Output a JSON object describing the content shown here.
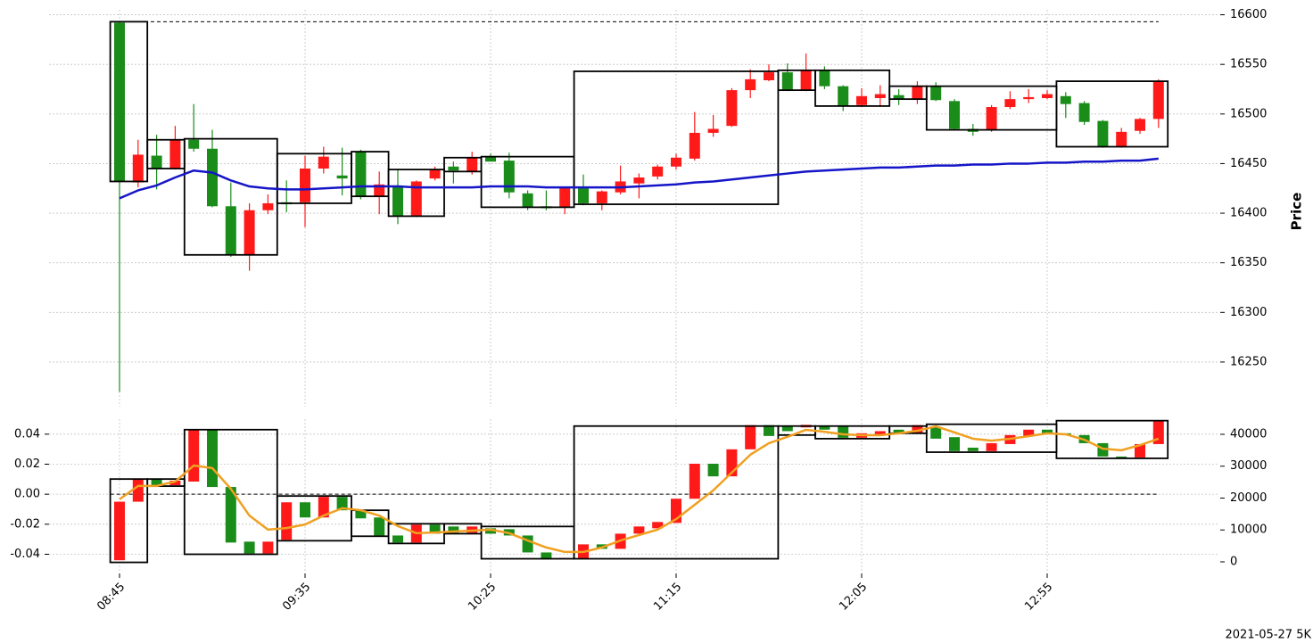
{
  "chart_data": [
    {
      "type": "candlestick",
      "ylabel": "Price",
      "ylim": [
        16205,
        16605
      ],
      "yticks": [
        16250,
        16300,
        16350,
        16400,
        16450,
        16500,
        16550,
        16600
      ],
      "grid": true,
      "up_color": "#ff1a1a",
      "down_color": "#1a8c1a",
      "hline": 16593,
      "open": [
        16592,
        16431,
        16458,
        16445,
        16474,
        16465,
        16407,
        16358,
        16403,
        16411,
        16411,
        16445,
        16438,
        16462,
        16417,
        16428,
        16397,
        16435,
        16447,
        16442,
        16457,
        16453,
        16420,
        16407,
        16406,
        16427,
        16410,
        16421,
        16430,
        16437,
        16447,
        16455,
        16481,
        16488,
        16524,
        16534,
        16542,
        16524,
        16544,
        16528,
        16509,
        16516,
        16519,
        16515,
        16528,
        16513,
        16485,
        16484,
        16507,
        16515,
        16516,
        16518,
        16511,
        16493,
        16467,
        16483,
        16495
      ],
      "high": [
        16593,
        16474,
        16479,
        16488,
        16510,
        16484,
        16431,
        16410,
        16419,
        16433,
        16458,
        16467,
        16466,
        16464,
        16442,
        16444,
        16433,
        16447,
        16452,
        16462,
        16460,
        16461,
        16423,
        16423,
        16427,
        16439,
        16423,
        16448,
        16440,
        16449,
        16460,
        16502,
        16499,
        16526,
        16545,
        16550,
        16551,
        16561,
        16548,
        16529,
        16526,
        16529,
        16525,
        16533,
        16532,
        16515,
        16490,
        16509,
        16523,
        16525,
        16524,
        16522,
        16513,
        16494,
        16486,
        16496,
        16535
      ],
      "low": [
        16220,
        16426,
        16424,
        16444,
        16462,
        16406,
        16356,
        16342,
        16399,
        16401,
        16386,
        16440,
        16418,
        16414,
        16399,
        16389,
        16396,
        16433,
        16430,
        16439,
        16452,
        16415,
        16403,
        16403,
        16399,
        16408,
        16403,
        16419,
        16415,
        16434,
        16444,
        16453,
        16477,
        16487,
        16516,
        16533,
        16523,
        16523,
        16525,
        16503,
        16507,
        16507,
        16509,
        16510,
        16513,
        16484,
        16478,
        16482,
        16505,
        16511,
        16515,
        16496,
        16489,
        16466,
        16466,
        16480,
        16486
      ],
      "close": [
        16432,
        16459,
        16445,
        16474,
        16465,
        16407,
        16358,
        16403,
        16410,
        16409,
        16445,
        16457,
        16435,
        16417,
        16429,
        16397,
        16432,
        16444,
        16443,
        16456,
        16452,
        16421,
        16406,
        16405,
        16426,
        16410,
        16422,
        16432,
        16436,
        16447,
        16456,
        16481,
        16485,
        16524,
        16535,
        16542,
        16524,
        16544,
        16528,
        16508,
        16518,
        16520,
        16515,
        16528,
        16514,
        16485,
        16482,
        16507,
        16515,
        16517,
        16520,
        16510,
        16492,
        16467,
        16482,
        16495,
        16533
      ],
      "series": [
        {
          "color": "#1515c8",
          "values": [
            16415,
            16423,
            16428,
            16436,
            16443,
            16441,
            16433,
            16427,
            16425,
            16424,
            16424,
            16425,
            16426,
            16427,
            16427,
            16427,
            16426,
            16426,
            16426,
            16426,
            16427,
            16427,
            16427,
            16426,
            16426,
            16426,
            16426,
            16426,
            16427,
            16428,
            16429,
            16431,
            16432,
            16434,
            16436,
            16438,
            16440,
            16442,
            16443,
            16444,
            16445,
            16446,
            16446,
            16447,
            16448,
            16448,
            16449,
            16449,
            16450,
            16450,
            16451,
            16451,
            16452,
            16452,
            16453,
            16453,
            16455
          ]
        }
      ],
      "boxes": [
        {
          "start": 0,
          "end": 1,
          "low": 16432,
          "high": 16593
        },
        {
          "start": 2,
          "end": 3,
          "low": 16445,
          "high": 16474
        },
        {
          "start": 4,
          "end": 8,
          "low": 16358,
          "high": 16475
        },
        {
          "start": 9,
          "end": 12,
          "low": 16410,
          "high": 16460
        },
        {
          "start": 13,
          "end": 14,
          "low": 16417,
          "high": 16462
        },
        {
          "start": 15,
          "end": 17,
          "low": 16397,
          "high": 16444
        },
        {
          "start": 18,
          "end": 19,
          "low": 16442,
          "high": 16456
        },
        {
          "start": 20,
          "end": 24,
          "low": 16406,
          "high": 16457
        },
        {
          "start": 25,
          "end": 35,
          "low": 16409,
          "high": 16543
        },
        {
          "start": 36,
          "end": 37,
          "low": 16524,
          "high": 16544
        },
        {
          "start": 38,
          "end": 41,
          "low": 16508,
          "high": 16544
        },
        {
          "start": 42,
          "end": 43,
          "low": 16515,
          "high": 16528
        },
        {
          "start": 44,
          "end": 50,
          "low": 16484,
          "high": 16528
        },
        {
          "start": 51,
          "end": 56,
          "low": 16467,
          "high": 16533
        }
      ]
    },
    {
      "type": "candlestick",
      "annotation": "2021-05-27 5K",
      "ylim": [
        -0.051,
        0.05
      ],
      "yticks": [
        -0.04,
        -0.02,
        {
          "value": 0,
          "label": "0.00"
        },
        0.02,
        0.04
      ],
      "y2lim": [
        -2800,
        44750
      ],
      "y2ticks": [
        0,
        10000,
        20000,
        30000,
        40000
      ],
      "grid": true,
      "up_color": "#ff1a1a",
      "down_color": "#1a8c1a",
      "hline": 0,
      "categories": [
        "08:45",
        null,
        null,
        null,
        null,
        null,
        null,
        null,
        null,
        null,
        "09:35",
        null,
        null,
        null,
        null,
        null,
        null,
        null,
        null,
        null,
        "10:25",
        null,
        null,
        null,
        null,
        null,
        null,
        null,
        null,
        null,
        "11:15",
        null,
        null,
        null,
        null,
        null,
        null,
        null,
        null,
        null,
        "12:05",
        null,
        null,
        null,
        null,
        null,
        null,
        null,
        null,
        null,
        "12:55",
        null,
        null,
        null,
        null,
        null,
        null
      ],
      "open": [
        -0.044,
        -0.005,
        0.0096,
        0.006,
        0.0084,
        0.043,
        0.0048,
        -0.0316,
        -0.0394,
        -0.0304,
        -0.0054,
        -0.0155,
        -0.0018,
        -0.0107,
        -0.0155,
        -0.0275,
        -0.0322,
        -0.0203,
        -0.0215,
        -0.0257,
        -0.0227,
        -0.0233,
        -0.0275,
        -0.0388,
        -0.043,
        -0.043,
        -0.0334,
        -0.0364,
        -0.0263,
        -0.0227,
        -0.0191,
        -0.003,
        0.0203,
        0.0119,
        0.0299,
        0.046,
        0.045,
        0.0445,
        0.045,
        0.045,
        0.0376,
        0.039,
        0.043,
        0.0406,
        0.045,
        0.038,
        0.031,
        0.0287,
        0.0334,
        0.039,
        0.043,
        0.0406,
        0.0394,
        0.034,
        0.0251,
        0.0245,
        0.0334
      ],
      "close": [
        -0.005,
        0.0096,
        0.006,
        0.009,
        0.043,
        0.0048,
        -0.0322,
        -0.0394,
        -0.0316,
        -0.0054,
        -0.0155,
        -0.0018,
        -0.0107,
        -0.0161,
        -0.0275,
        -0.0322,
        -0.0203,
        -0.0263,
        -0.0257,
        -0.0215,
        -0.0263,
        -0.0275,
        -0.0388,
        -0.043,
        -0.0425,
        -0.0334,
        -0.0364,
        -0.0263,
        -0.0215,
        -0.0185,
        -0.003,
        0.0203,
        0.0119,
        0.0299,
        0.046,
        0.0388,
        0.042,
        0.0462,
        0.043,
        0.0376,
        0.0406,
        0.042,
        0.0406,
        0.046,
        0.037,
        0.0287,
        0.0287,
        0.034,
        0.0394,
        0.043,
        0.0406,
        0.0394,
        0.034,
        0.0251,
        0.0239,
        0.0334,
        0.049
      ],
      "series": [
        {
          "color": "#f0a020",
          "axis": "y2",
          "values": [
            19600,
            23800,
            23800,
            25200,
            30200,
            29400,
            22900,
            14500,
            10100,
            10600,
            11700,
            14500,
            16800,
            16200,
            14500,
            11200,
            9000,
            9200,
            9500,
            9800,
            10100,
            9000,
            6700,
            4500,
            3100,
            3100,
            4500,
            6700,
            8400,
            10100,
            13400,
            17900,
            22400,
            28000,
            33600,
            37200,
            39200,
            41400,
            40800,
            40000,
            39700,
            39700,
            40300,
            41100,
            42500,
            40600,
            38600,
            38000,
            38600,
            39400,
            40300,
            40000,
            38300,
            35500,
            35000,
            36600,
            38600
          ]
        }
      ],
      "boxes": [
        {
          "start": 0,
          "end": 1,
          "low": -0.0454,
          "high": 0.0101
        },
        {
          "start": 2,
          "end": 3,
          "low": 0.0054,
          "high": 0.0101
        },
        {
          "start": 4,
          "end": 8,
          "low": -0.04,
          "high": 0.043
        },
        {
          "start": 9,
          "end": 12,
          "low": -0.031,
          "high": -0.0012
        },
        {
          "start": 13,
          "end": 14,
          "low": -0.028,
          "high": -0.0107
        },
        {
          "start": 15,
          "end": 17,
          "low": -0.0328,
          "high": -0.0197
        },
        {
          "start": 18,
          "end": 19,
          "low": -0.0263,
          "high": -0.0197
        },
        {
          "start": 20,
          "end": 24,
          "low": -0.043,
          "high": -0.0215
        },
        {
          "start": 25,
          "end": 35,
          "low": -0.043,
          "high": 0.0454
        },
        {
          "start": 36,
          "end": 37,
          "low": 0.0394,
          "high": 0.0454
        },
        {
          "start": 38,
          "end": 41,
          "low": 0.037,
          "high": 0.0454
        },
        {
          "start": 42,
          "end": 43,
          "low": 0.0406,
          "high": 0.0454
        },
        {
          "start": 44,
          "end": 50,
          "low": 0.028,
          "high": 0.0466
        },
        {
          "start": 51,
          "end": 56,
          "low": 0.0239,
          "high": 0.049
        }
      ]
    }
  ]
}
